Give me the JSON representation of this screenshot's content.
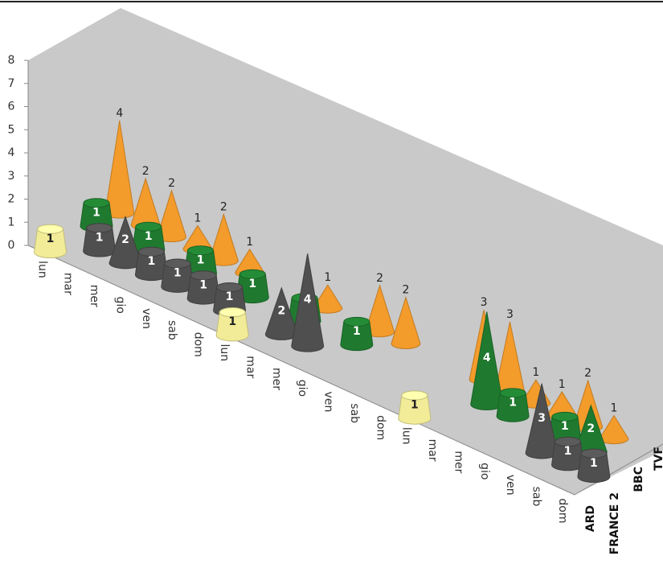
{
  "chart_data": {
    "type": "bar3d",
    "categories": [
      "lun",
      "mar",
      "mer",
      "gio",
      "ven",
      "sab",
      "dom",
      "lun",
      "mar",
      "mer",
      "gio",
      "ven",
      "sab",
      "dom",
      "lun",
      "mar",
      "mer",
      "gio",
      "ven",
      "sab",
      "dom"
    ],
    "ylim": [
      0,
      8
    ],
    "yticks": [
      0,
      1,
      2,
      3,
      4,
      5,
      6,
      7,
      8
    ],
    "series": [
      {
        "name": "ARD",
        "color": "#f2ec98",
        "values": [
          1,
          null,
          null,
          null,
          null,
          null,
          null,
          1,
          null,
          null,
          null,
          null,
          null,
          null,
          1,
          null,
          null,
          null,
          null,
          null,
          null
        ]
      },
      {
        "name": "FRANCE 2",
        "color": "#4f4f4f",
        "values": [
          null,
          1,
          2,
          1,
          1,
          1,
          1,
          null,
          2,
          4,
          null,
          null,
          null,
          null,
          null,
          null,
          null,
          null,
          3,
          1,
          1
        ]
      },
      {
        "name": "BBC",
        "color": "#1f7a2f",
        "values": [
          1,
          null,
          1,
          null,
          1,
          null,
          1,
          null,
          1,
          null,
          1,
          null,
          null,
          null,
          null,
          4,
          1,
          null,
          1,
          2,
          null
        ]
      },
      {
        "name": "TVF",
        "color": "#f39b2b",
        "values": [
          4,
          2,
          2,
          1,
          2,
          1,
          null,
          null,
          1,
          null,
          2,
          2,
          null,
          null,
          3,
          3,
          1,
          1,
          2,
          1,
          null
        ]
      }
    ]
  }
}
